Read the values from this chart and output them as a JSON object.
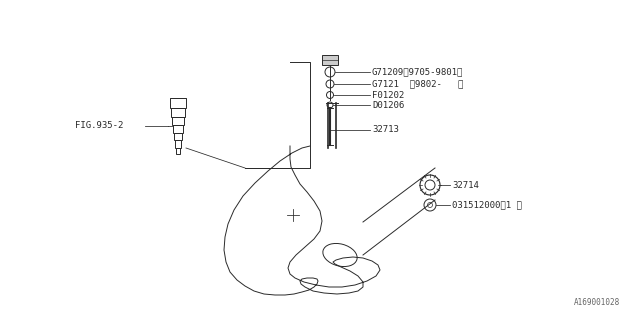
{
  "background_color": "#ffffff",
  "fig_width": 6.4,
  "fig_height": 3.2,
  "dpi": 100,
  "font_size": 6.5,
  "line_color": "#2a2a2a",
  "line_width": 0.7,
  "labels": {
    "G71209": "G71209〈9705-9801〉",
    "G7121": "G7121  〈9802-   〉",
    "F01202": "F01202",
    "D01206": "D01206",
    "32713": "32713",
    "32714": "32714",
    "031512000": "031512000〈1 〉",
    "FIG935": "FIG.935-2",
    "watermark": "A169001028"
  }
}
